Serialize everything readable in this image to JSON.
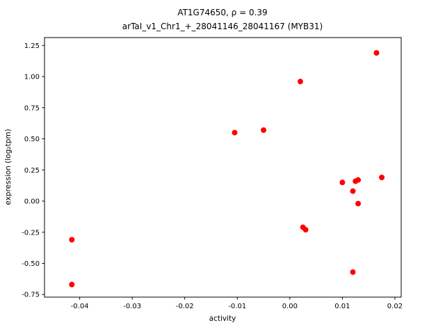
{
  "chart_data": {
    "type": "scatter",
    "title_line1": "AT1G74650, ρ = 0.39",
    "title_line2": "arTaI_v1_Chr1_+_28041146_28041167 (MYB31)",
    "xlabel": "activity",
    "ylabel": "expression (log₂tpm)",
    "xlim": [
      -0.0467,
      0.0212
    ],
    "ylim": [
      -0.771,
      1.313
    ],
    "xticks": [
      -0.04,
      -0.03,
      -0.02,
      -0.01,
      0.0,
      0.01,
      0.02
    ],
    "xtick_labels": [
      "-0.04",
      "-0.03",
      "-0.02",
      "-0.01",
      "0.00",
      "0.01",
      "0.02"
    ],
    "yticks": [
      -0.75,
      -0.5,
      -0.25,
      0.0,
      0.25,
      0.5,
      0.75,
      1.0,
      1.25
    ],
    "ytick_labels": [
      "-0.75",
      "-0.50",
      "-0.25",
      "0.00",
      "0.25",
      "0.50",
      "0.75",
      "1.00",
      "1.25"
    ],
    "marker_color": "#ff0000",
    "marker_radius": 4,
    "legend": "none",
    "grid": false,
    "points": [
      {
        "x": -0.0415,
        "y": -0.31
      },
      {
        "x": -0.0415,
        "y": -0.67
      },
      {
        "x": -0.0105,
        "y": 0.55
      },
      {
        "x": -0.005,
        "y": 0.57
      },
      {
        "x": 0.002,
        "y": 0.96
      },
      {
        "x": 0.0025,
        "y": -0.21
      },
      {
        "x": 0.003,
        "y": -0.23
      },
      {
        "x": 0.01,
        "y": 0.15
      },
      {
        "x": 0.012,
        "y": 0.08
      },
      {
        "x": 0.0125,
        "y": 0.16
      },
      {
        "x": 0.013,
        "y": 0.17
      },
      {
        "x": 0.013,
        "y": -0.02
      },
      {
        "x": 0.012,
        "y": -0.57
      },
      {
        "x": 0.0165,
        "y": 1.19
      },
      {
        "x": 0.0175,
        "y": 0.19
      }
    ]
  }
}
